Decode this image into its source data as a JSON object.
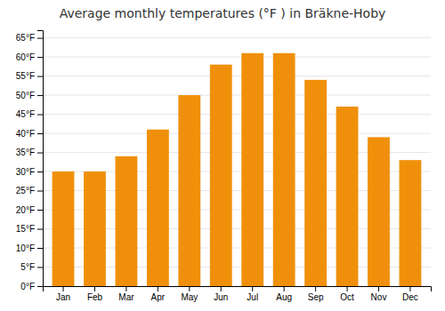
{
  "chart_data": {
    "type": "bar",
    "title": "Average monthly temperatures (°F ) in Bräkne-Hoby",
    "categories": [
      "Jan",
      "Feb",
      "Mar",
      "Apr",
      "May",
      "Jun",
      "Jul",
      "Aug",
      "Sep",
      "Oct",
      "Nov",
      "Dec"
    ],
    "values": [
      30,
      30,
      34,
      41,
      50,
      58,
      61,
      61,
      54,
      47,
      39,
      33
    ],
    "color": "#F0900A",
    "ylim": [
      0,
      67
    ],
    "yticks": [
      {
        "value": 0,
        "label": "0°F"
      },
      {
        "value": 5,
        "label": "5°F"
      },
      {
        "value": 10,
        "label": "10°F"
      },
      {
        "value": 15,
        "label": "15°F"
      },
      {
        "value": 20,
        "label": "20°F"
      },
      {
        "value": 25,
        "label": "25°F"
      },
      {
        "value": 30,
        "label": "30°F"
      },
      {
        "value": 35,
        "label": "35°F"
      },
      {
        "value": 40,
        "label": "40°F"
      },
      {
        "value": 45,
        "label": "45°F"
      },
      {
        "value": 50,
        "label": "50°F"
      },
      {
        "value": 55,
        "label": "55°F"
      },
      {
        "value": 60,
        "label": "60°F"
      },
      {
        "value": 65,
        "label": "65°F"
      }
    ],
    "grid": true
  }
}
